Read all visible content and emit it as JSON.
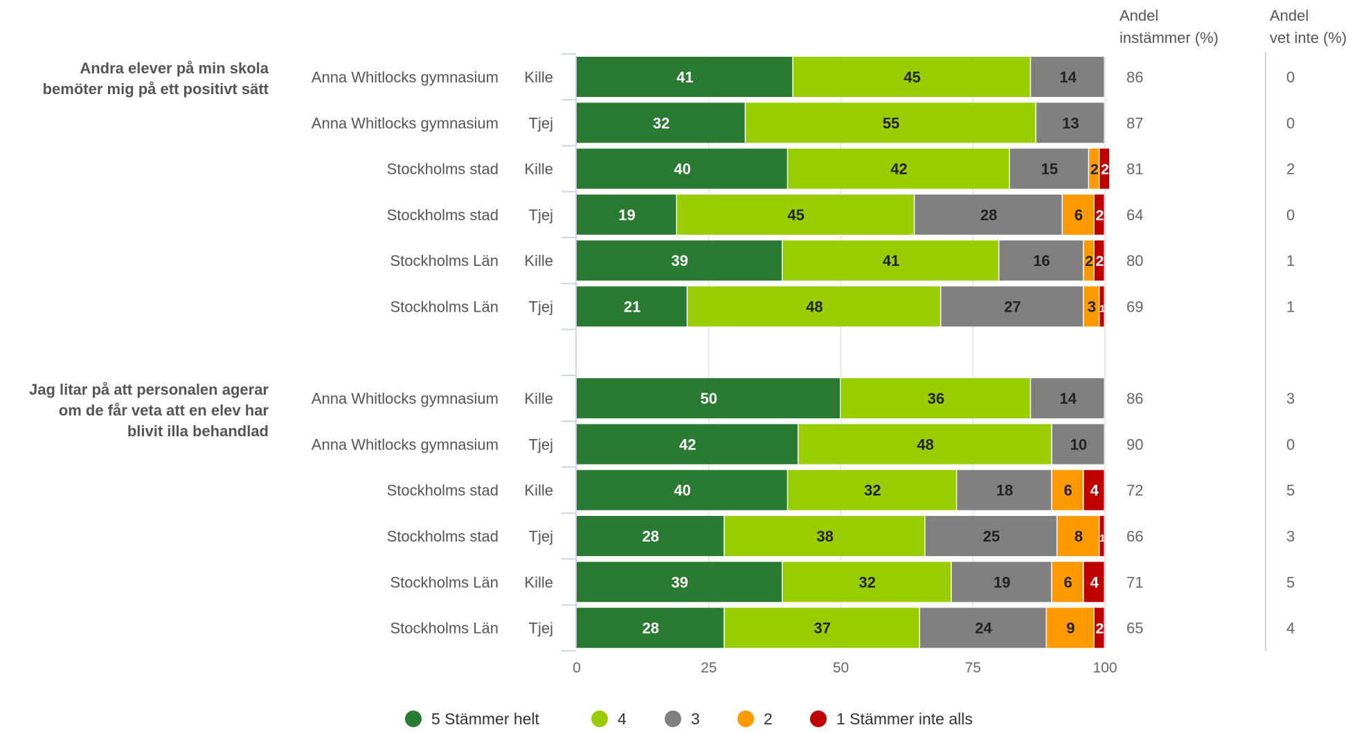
{
  "chart_data": {
    "type": "bar",
    "stacked": true,
    "orientation": "horizontal",
    "xlim": [
      0,
      100
    ],
    "x_ticks": [
      "0",
      "25",
      "50",
      "75",
      "100"
    ],
    "grid": true,
    "legend_position": "bottom",
    "column_headers": {
      "share_agree": [
        "Andel",
        "instämmer (%)"
      ],
      "share_dont_know": [
        "Andel",
        "vet inte (%)"
      ]
    },
    "series": [
      {
        "name": "5 Stämmer helt",
        "color": "#2a7a32",
        "text_color": "#ffffff"
      },
      {
        "name": "4",
        "color": "#9acd00",
        "text_color": "#222222"
      },
      {
        "name": "3",
        "color": "#808080",
        "text_color": "#222222"
      },
      {
        "name": "2",
        "color": "#ff9900",
        "text_color": "#222222"
      },
      {
        "name": "1 Stämmer inte alls",
        "color": "#c00000",
        "text_color": "#ffffff"
      }
    ],
    "groups": [
      {
        "question": [
          "Andra elever på min skola",
          "bemöter mig på ett positivt sätt"
        ],
        "rows": [
          {
            "school": "Anna Whitlocks gymnasium",
            "gender": "Kille",
            "values": [
              41,
              45,
              14,
              0,
              0
            ],
            "agree": "86",
            "dont_know": "0"
          },
          {
            "school": "Anna Whitlocks gymnasium",
            "gender": "Tjej",
            "values": [
              32,
              55,
              13,
              0,
              0
            ],
            "agree": "87",
            "dont_know": "0"
          },
          {
            "school": "Stockholms stad",
            "gender": "Kille",
            "values": [
              40,
              42,
              15,
              2,
              2
            ],
            "agree": "81",
            "dont_know": "2"
          },
          {
            "school": "Stockholms stad",
            "gender": "Tjej",
            "values": [
              19,
              45,
              28,
              6,
              2
            ],
            "agree": "64",
            "dont_know": "0"
          },
          {
            "school": "Stockholms Län",
            "gender": "Kille",
            "values": [
              39,
              41,
              16,
              2,
              2
            ],
            "agree": "80",
            "dont_know": "1"
          },
          {
            "school": "Stockholms Län",
            "gender": "Tjej",
            "values": [
              21,
              48,
              27,
              3,
              1
            ],
            "agree": "69",
            "dont_know": "1"
          }
        ]
      },
      {
        "question": [
          "Jag litar på att personalen agerar",
          "om de får veta att en elev har",
          "blivit illa behandlad"
        ],
        "rows": [
          {
            "school": "Anna Whitlocks gymnasium",
            "gender": "Kille",
            "values": [
              50,
              36,
              14,
              0,
              0
            ],
            "agree": "86",
            "dont_know": "3"
          },
          {
            "school": "Anna Whitlocks gymnasium",
            "gender": "Tjej",
            "values": [
              42,
              48,
              10,
              0,
              0
            ],
            "agree": "90",
            "dont_know": "0"
          },
          {
            "school": "Stockholms stad",
            "gender": "Kille",
            "values": [
              40,
              32,
              18,
              6,
              4
            ],
            "agree": "72",
            "dont_know": "5"
          },
          {
            "school": "Stockholms stad",
            "gender": "Tjej",
            "values": [
              28,
              38,
              25,
              8,
              1
            ],
            "agree": "66",
            "dont_know": "3"
          },
          {
            "school": "Stockholms Län",
            "gender": "Kille",
            "values": [
              39,
              32,
              19,
              6,
              4
            ],
            "agree": "71",
            "dont_know": "5"
          },
          {
            "school": "Stockholms Län",
            "gender": "Tjej",
            "values": [
              28,
              37,
              24,
              9,
              2
            ],
            "agree": "65",
            "dont_know": "4"
          }
        ]
      }
    ]
  }
}
